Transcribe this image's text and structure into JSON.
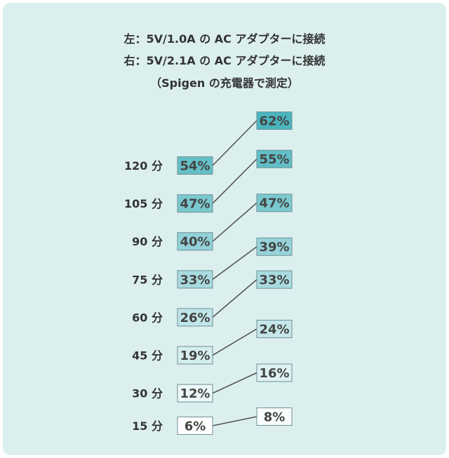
{
  "title_lines": [
    "左：5V/1.0A の AC アダプターに接続",
    "右：5V/2.1A の AC アダプターに接続",
    "（Spigen の充電器で測定）"
  ],
  "chart_data": {
    "type": "slope",
    "categories": [
      "120 分",
      "105 分",
      "90 分",
      "75 分",
      "60 分",
      "45 分",
      "30 分",
      "15 分"
    ],
    "series": [
      {
        "values": [
          54,
          47,
          40,
          33,
          26,
          19,
          12,
          6
        ]
      },
      {
        "values": [
          62,
          55,
          47,
          39,
          33,
          24,
          16,
          8
        ]
      }
    ],
    "value_suffix": "%",
    "colors": {
      "panel_background": "#dcefef",
      "line": "#555555",
      "label_text": "#333333",
      "box_text": "#444444",
      "box_low": "#ffffff",
      "box_high": "#4bb5be"
    }
  }
}
